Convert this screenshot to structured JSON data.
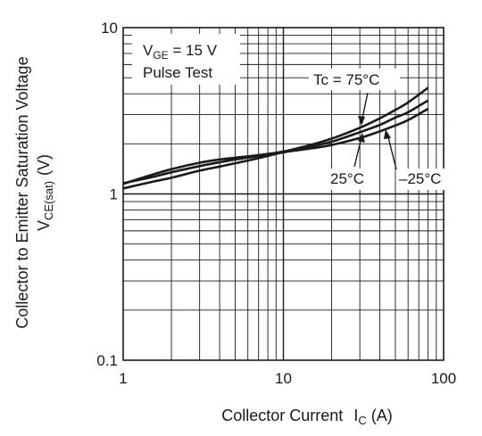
{
  "chart_data": {
    "type": "line",
    "x_scale": "log",
    "y_scale": "log",
    "xlim": [
      1,
      100
    ],
    "ylim": [
      0.1,
      10
    ],
    "grid": true,
    "xlabel": "Collector Current",
    "xlabel_symbol": "I",
    "xlabel_sub": "C",
    "xlabel_unit": "(A)",
    "ylabel": "Collector to Emitter Saturation Voltage",
    "ylabel_symbol": "V",
    "ylabel_sub": "CE(sat)",
    "ylabel_unit": "(V)",
    "x_ticks": [
      1,
      10,
      100
    ],
    "x_tick_labels": [
      "1",
      "10",
      "100"
    ],
    "y_ticks": [
      0.1,
      1,
      10
    ],
    "y_tick_labels": [
      "0.1",
      "1",
      "10"
    ],
    "condition_box": {
      "line1_symbol": "V",
      "line1_sub": "GE",
      "line1_rest": " = 15 V",
      "line2": "Pulse Test"
    },
    "series": [
      {
        "name": "Tc = 75°C",
        "x": [
          1,
          1.5,
          2,
          3,
          4,
          5,
          7,
          10,
          15,
          20,
          30,
          40,
          50,
          60,
          80
        ],
        "y": [
          1.15,
          1.3,
          1.41,
          1.54,
          1.61,
          1.65,
          1.71,
          1.8,
          1.98,
          2.15,
          2.5,
          2.85,
          3.2,
          3.55,
          4.35
        ]
      },
      {
        "name": "25°C",
        "x": [
          1,
          1.5,
          2,
          3,
          4,
          5,
          7,
          10,
          15,
          20,
          30,
          40,
          50,
          60,
          80
        ],
        "y": [
          1.16,
          1.26,
          1.35,
          1.47,
          1.55,
          1.61,
          1.69,
          1.79,
          1.93,
          2.06,
          2.35,
          2.6,
          2.88,
          3.1,
          3.65
        ]
      },
      {
        "name": "–25°C",
        "x": [
          1,
          1.5,
          2,
          3,
          4,
          5,
          7,
          10,
          15,
          20,
          30,
          40,
          50,
          60,
          80
        ],
        "y": [
          1.08,
          1.18,
          1.25,
          1.38,
          1.46,
          1.53,
          1.64,
          1.78,
          1.88,
          1.97,
          2.17,
          2.38,
          2.58,
          2.78,
          3.25
        ]
      }
    ],
    "annotations": [
      {
        "text": "Tc = 75°C",
        "series": 0
      },
      {
        "text": "25°C",
        "series": 1
      },
      {
        "text": "–25°C",
        "series": 2
      }
    ]
  }
}
